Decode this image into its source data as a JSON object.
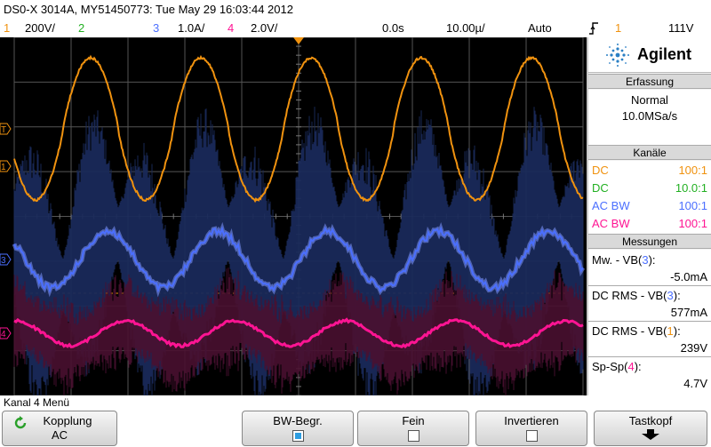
{
  "header": {
    "title": "DS0-X 3014A, MY51450773: Tue May 29 16:03:44 2012"
  },
  "channel_bar": {
    "ch1_num": "1",
    "ch1_scale": "200V/",
    "ch2_num": "2",
    "ch3_num": "3",
    "ch3_scale": "1.0A/",
    "ch4_num": "4",
    "ch4_scale": "2.0V/",
    "time_offset": "0.0s",
    "time_scale": "10.00µ/",
    "trigger_mode": "Auto",
    "trigger_icon": "trigger-edge-icon",
    "trigger_channel": "1",
    "trigger_level": "111V"
  },
  "colors": {
    "ch1": "#f0920f",
    "ch2": "#22b022",
    "ch3": "#4b6fff",
    "ch4": "#ff1493"
  },
  "panel": {
    "brand": "Agilent",
    "acquisition_header": "Erfassung",
    "acquisition_mode": "Normal",
    "sample_rate": "10.0MSa/s",
    "channels_header": "Kanäle",
    "channels": [
      {
        "coupling": "DC",
        "probe": "100:1"
      },
      {
        "coupling": "DC",
        "probe": "10.0:1"
      },
      {
        "coupling": "AC BW",
        "probe": "100:1"
      },
      {
        "coupling": "AC BW",
        "probe": "100:1"
      }
    ],
    "measurements_header": "Messungen",
    "measurements": [
      {
        "label_pre": "Mw. - VB(",
        "channel": "3",
        "label_post": "):",
        "value": "-5.0mA"
      },
      {
        "label_pre": "DC RMS - VB(",
        "channel": "3",
        "label_post": "):",
        "value": "577mA"
      },
      {
        "label_pre": "DC RMS - VB(",
        "channel": "1",
        "label_post": "):",
        "value": "239V"
      },
      {
        "label_pre": "Sp-Sp(",
        "channel": "4",
        "label_post": "):",
        "value": "4.7V"
      }
    ]
  },
  "menu": {
    "title": "Kanal 4 Menü",
    "softkeys": [
      {
        "label": "Kopplung",
        "value": "AC"
      },
      {
        "label": "BW-Begr.",
        "checked": true
      },
      {
        "label": "Fein",
        "checked": false
      },
      {
        "label": "Invertieren",
        "checked": false
      },
      {
        "label": "Tastkopf"
      }
    ]
  },
  "markers": {
    "ch1": "1",
    "ch3": "3",
    "ch4": "4",
    "trigger": "T"
  },
  "chart_data": {
    "type": "line",
    "title": "",
    "xlabel": "",
    "ylabel": "",
    "grid": true,
    "series": [
      {
        "name": "1",
        "description_values": {
          "period_divisions": 1.55,
          "cycles_visible": 5.5
        },
        "color": "#f0920f"
      },
      {
        "name": "3",
        "color": "#4b6fff"
      },
      {
        "name": "4",
        "color": "#ff1493"
      }
    ]
  }
}
